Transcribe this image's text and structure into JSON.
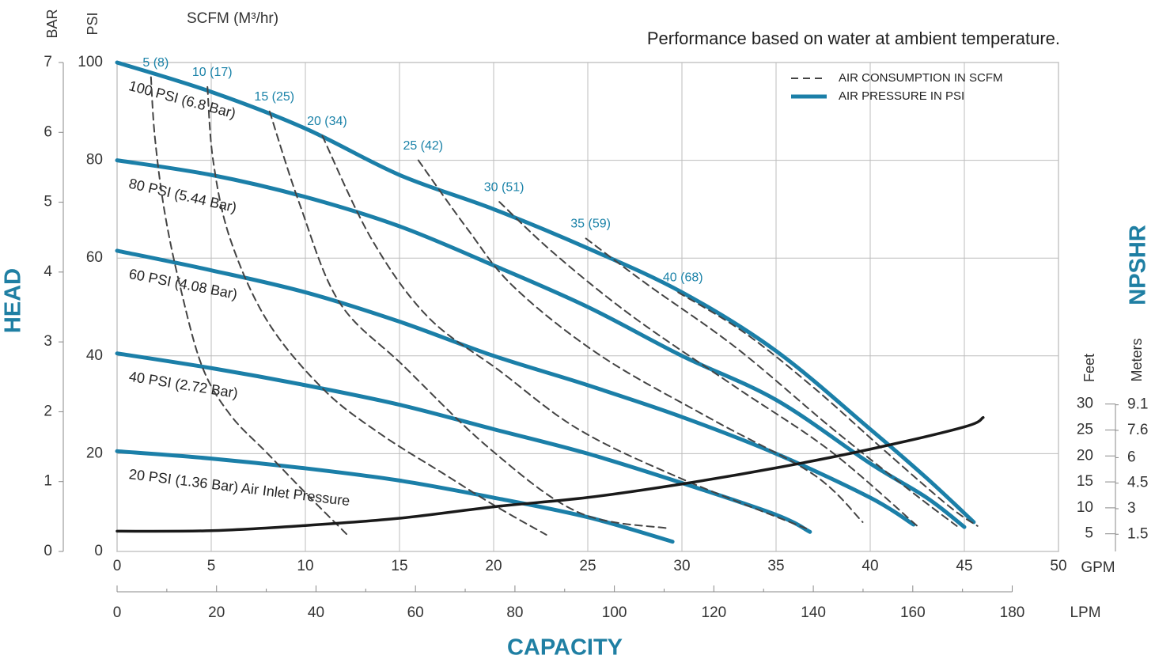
{
  "chart_data": {
    "type": "line",
    "title": "Performance based on water at ambient temperature.",
    "y_label": "HEAD",
    "x_label": "CAPACITY",
    "y2_label": "NPSHR",
    "scfm_label": "SCFM (M³/hr)",
    "xlim": [
      0,
      50
    ],
    "xticks": [
      0,
      5,
      10,
      15,
      20,
      25,
      30,
      35,
      40,
      45,
      50
    ],
    "x_unit": "GPM",
    "ylim": [
      0,
      100
    ],
    "yticks": [
      0,
      20,
      40,
      60,
      80,
      100
    ],
    "y_unit": "PSI",
    "grid": true,
    "bar_axis": {
      "label": "BAR",
      "ylim": [
        0,
        7
      ],
      "yticks": [
        0,
        1,
        2,
        3,
        4,
        5,
        6,
        7
      ]
    },
    "lpm_axis": {
      "label": "LPM",
      "xlim": [
        0,
        189.3
      ],
      "xticks": [
        0,
        20,
        40,
        60,
        80,
        100,
        120,
        140,
        160,
        180
      ],
      "minor_ticks": [
        10,
        30,
        50,
        70,
        90,
        110,
        130,
        150,
        170
      ]
    },
    "y2lim": [
      1.6,
      95.8
    ],
    "y2ticks": [
      5,
      10,
      15,
      20,
      25,
      30
    ],
    "y2_unit": "Feet",
    "meters_axis": {
      "label": "Meters",
      "ylim": [
        0.49,
        29.2
      ],
      "yticks": [
        1.5,
        3,
        4.5,
        6,
        7.6,
        9.1
      ]
    },
    "legend": {
      "corner": "top-right",
      "entries": [
        {
          "label": "AIR CONSUMPTION IN SCFM",
          "style": "dashed",
          "color": "#444444"
        },
        {
          "label": "AIR PRESSURE IN PSI",
          "style": "solid",
          "color": "#1b7fa8"
        }
      ]
    },
    "series": [
      {
        "name": "100 PSI (6.8 Bar)",
        "style": "solid",
        "color": "#1b7fa8",
        "x": [
          0,
          5,
          10,
          15,
          20,
          25,
          30,
          35,
          40,
          43,
          45.5
        ],
        "values": [
          100,
          94,
          86.5,
          77,
          70,
          62,
          53,
          41,
          25,
          15,
          6
        ]
      },
      {
        "name": "80 PSI (5.44 Bar)",
        "style": "solid",
        "color": "#1b7fa8",
        "x": [
          0,
          5,
          10,
          15,
          20,
          25,
          30,
          35,
          40,
          43,
          45
        ],
        "values": [
          80,
          77,
          72.5,
          66.5,
          58.5,
          50,
          40,
          31,
          18,
          11,
          5
        ]
      },
      {
        "name": "60 PSI (4.08 Bar)",
        "style": "solid",
        "color": "#1b7fa8",
        "x": [
          0,
          5,
          10,
          15,
          20,
          25,
          30,
          35,
          40,
          42.3
        ],
        "values": [
          61.5,
          57.5,
          53,
          47,
          40,
          34,
          27.5,
          20,
          11,
          5.5
        ]
      },
      {
        "name": "40 PSI (2.72 Bar)",
        "style": "solid",
        "color": "#1b7fa8",
        "x": [
          0,
          5,
          10,
          15,
          20,
          25,
          30,
          35,
          36.8
        ],
        "values": [
          40.5,
          37.5,
          34,
          30,
          25,
          20,
          14,
          7.5,
          4
        ]
      },
      {
        "name": "20 PSI (1.36 Bar) Air Inlet Pressure",
        "style": "solid",
        "color": "#1b7fa8",
        "x": [
          0,
          5,
          10,
          15,
          20,
          25,
          29.5
        ],
        "values": [
          20.5,
          19,
          17,
          14.5,
          11,
          7,
          2
        ]
      },
      {
        "name": "5 (8)",
        "style": "dashed",
        "color": "#444444",
        "x": [
          1.8,
          2,
          2.5,
          3.3,
          4.5,
          6,
          8,
          10,
          12.2
        ],
        "values": [
          97,
          85,
          70,
          55,
          38,
          28,
          20,
          12,
          3.5
        ]
      },
      {
        "name": "10 (17)",
        "style": "dashed",
        "color": "#444444",
        "x": [
          4.8,
          5.1,
          6,
          8,
          11,
          14,
          17.3,
          20,
          22.8
        ],
        "values": [
          95,
          80,
          64,
          47,
          33,
          24,
          16,
          9.5,
          3.4
        ]
      },
      {
        "name": "15 (25)",
        "style": "dashed",
        "color": "#444444",
        "x": [
          8.1,
          9.7,
          11.8,
          15.2,
          19.8,
          24.5,
          29.3
        ],
        "values": [
          90,
          71,
          51,
          38,
          21,
          8,
          4.7
        ]
      },
      {
        "name": "20 (34)",
        "style": "dashed",
        "color": "#444444",
        "x": [
          10.9,
          13.5,
          16.5,
          20.3,
          24.5,
          29.9,
          36.6
        ],
        "values": [
          85,
          64,
          48,
          37,
          25,
          15,
          4.7
        ]
      },
      {
        "name": "25 (42)",
        "style": "dashed",
        "color": "#444444",
        "x": [
          16,
          18.6,
          21.1,
          25.7,
          31.6,
          37,
          39.6
        ],
        "values": [
          80,
          66,
          54,
          40,
          27,
          15.7,
          6
        ]
      },
      {
        "name": "30 (51)",
        "style": "dashed",
        "color": "#444444",
        "x": [
          20.3,
          23.2,
          27.4,
          32.9,
          37.9,
          42.5
        ],
        "values": [
          71.5,
          61,
          48,
          33.5,
          20.5,
          5.2
        ]
      },
      {
        "name": "35 (59)",
        "style": "dashed",
        "color": "#444444",
        "x": [
          24.9,
          28.2,
          32.9,
          37.9,
          42.1,
          44.6
        ],
        "values": [
          64,
          54.5,
          41.6,
          25.4,
          12.5,
          5.2
        ]
      },
      {
        "name": "40 (68)",
        "style": "dashed",
        "color": "#444444",
        "x": [
          29.8,
          33.3,
          37,
          40.8,
          44.2,
          45.7
        ],
        "values": [
          53,
          44.8,
          33.5,
          20.5,
          9.2,
          5.2
        ]
      },
      {
        "style": "solid",
        "color": "#1a1a1a",
        "axis": "y2",
        "x": [
          0,
          5,
          10,
          15,
          20,
          25,
          30,
          35,
          40,
          45,
          46
        ],
        "values": [
          5.5,
          5.6,
          6.6,
          8,
          10.2,
          12,
          14.6,
          17.7,
          21.3,
          25.6,
          27.4
        ]
      }
    ]
  }
}
